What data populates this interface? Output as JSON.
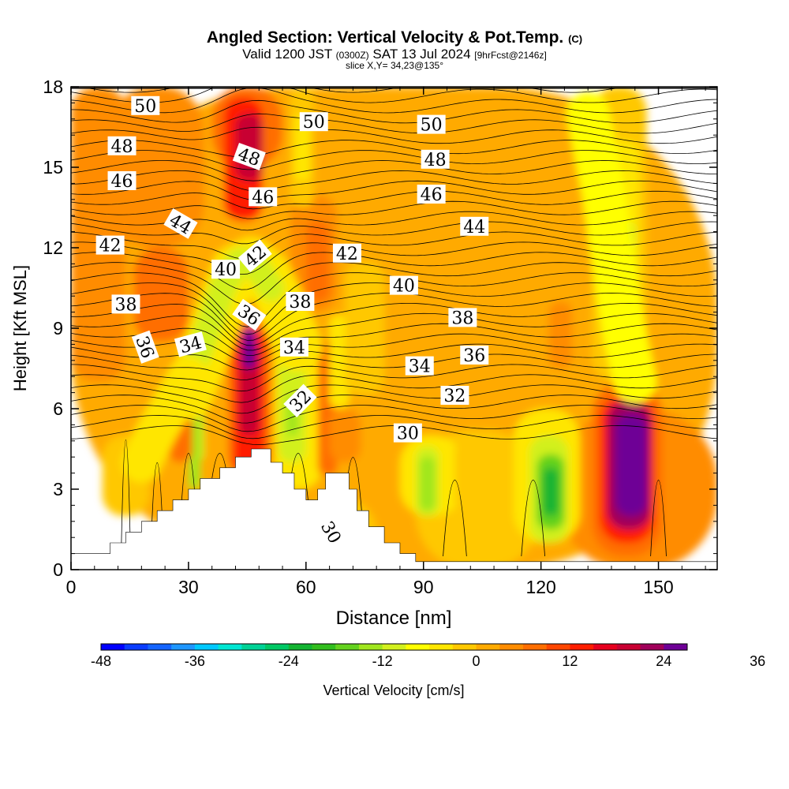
{
  "title": {
    "main": "Angled Section: Vertical Velocity & Pot.Temp.",
    "main_mark": "(C)",
    "valid_prefix": "Valid 1200 JST",
    "valid_utc": "(0300Z)",
    "valid_date": "SAT 13 Jul 2024",
    "forecast": "[9hrFcst@2146z]",
    "slice": "slice X,Y= 34,23@135°"
  },
  "chart_data": {
    "type": "heatmap",
    "xlabel": "Distance [nm]",
    "ylabel": "Height [Kft MSL]",
    "xlim": [
      0,
      165
    ],
    "ylim": [
      0,
      18
    ],
    "x_ticks": [
      "0",
      "30",
      "60",
      "90",
      "120",
      "150"
    ],
    "y_ticks": [
      "0",
      "3",
      "6",
      "9",
      "12",
      "15",
      "18"
    ],
    "colorbar": {
      "label": "Vertical Velocity [cm/s]",
      "tick_labels": [
        "-48",
        "-36",
        "-24",
        "-12",
        "0",
        "12",
        "24",
        "36"
      ],
      "levels_min": -48,
      "levels_step": 3,
      "colors": [
        "#0000ff",
        "#0a3cff",
        "#1464ff",
        "#1e96ff",
        "#00c8ff",
        "#00e6d2",
        "#00d296",
        "#00c864",
        "#14b432",
        "#32be1e",
        "#64d21e",
        "#a0e61e",
        "#d2f01e",
        "#ffff00",
        "#ffe600",
        "#ffc800",
        "#ffaa00",
        "#ff8c00",
        "#ff6e00",
        "#ff4600",
        "#ff1e00",
        "#e6001e",
        "#c80032",
        "#a0005a",
        "#6e0096"
      ]
    },
    "theta_contours_C": [
      30,
      32,
      34,
      36,
      38,
      40,
      42,
      44,
      46,
      48,
      50
    ],
    "contour_labels": [
      {
        "text": "50",
        "x": 19,
        "y": 17.3,
        "angle": 0
      },
      {
        "text": "50",
        "x": 62,
        "y": 16.7,
        "angle": 0
      },
      {
        "text": "50",
        "x": 92,
        "y": 16.6,
        "angle": 0
      },
      {
        "text": "48",
        "x": 13,
        "y": 15.8,
        "angle": 0
      },
      {
        "text": "48",
        "x": 45.5,
        "y": 15.4,
        "angle": 20
      },
      {
        "text": "48",
        "x": 93,
        "y": 15.3,
        "angle": 0
      },
      {
        "text": "46",
        "x": 13,
        "y": 14.5,
        "angle": 0
      },
      {
        "text": "46",
        "x": 49,
        "y": 13.9,
        "angle": 0
      },
      {
        "text": "46",
        "x": 92,
        "y": 14.0,
        "angle": 0
      },
      {
        "text": "44",
        "x": 28,
        "y": 12.9,
        "angle": 30
      },
      {
        "text": "44",
        "x": 103,
        "y": 12.8,
        "angle": 0
      },
      {
        "text": "42",
        "x": 10,
        "y": 12.1,
        "angle": 0
      },
      {
        "text": "42",
        "x": 47,
        "y": 11.7,
        "angle": -40
      },
      {
        "text": "42",
        "x": 70.5,
        "y": 11.8,
        "angle": 0
      },
      {
        "text": "40",
        "x": 39.5,
        "y": 11.2,
        "angle": 0
      },
      {
        "text": "40",
        "x": 85,
        "y": 10.6,
        "angle": 0
      },
      {
        "text": "38",
        "x": 14,
        "y": 9.9,
        "angle": 0
      },
      {
        "text": "38",
        "x": 58.5,
        "y": 10.0,
        "angle": 0
      },
      {
        "text": "38",
        "x": 100,
        "y": 9.4,
        "angle": 0
      },
      {
        "text": "36",
        "x": 45.5,
        "y": 9.5,
        "angle": 35
      },
      {
        "text": "36",
        "x": 19,
        "y": 8.3,
        "angle": 70
      },
      {
        "text": "36",
        "x": 103,
        "y": 8.0,
        "angle": 0
      },
      {
        "text": "34",
        "x": 30.5,
        "y": 8.4,
        "angle": -15
      },
      {
        "text": "34",
        "x": 57,
        "y": 8.3,
        "angle": 0
      },
      {
        "text": "34",
        "x": 89,
        "y": 7.6,
        "angle": 0
      },
      {
        "text": "32",
        "x": 58.5,
        "y": 6.3,
        "angle": -45
      },
      {
        "text": "32",
        "x": 98,
        "y": 6.5,
        "angle": 0
      },
      {
        "text": "30",
        "x": 86,
        "y": 5.1,
        "angle": 0
      },
      {
        "text": "30",
        "x": 66.5,
        "y": 1.4,
        "angle": 60
      }
    ],
    "velocity_cells": [
      {
        "x": 0,
        "y": 0,
        "w": 165,
        "h": 18,
        "value": 1.5
      },
      {
        "x": 0,
        "y": 7,
        "w": 14,
        "h": 11,
        "value": 4.5
      },
      {
        "x": 10,
        "y": 12,
        "w": 24,
        "h": 6,
        "value": 4.5
      },
      {
        "x": 124,
        "y": 0,
        "w": 41,
        "h": 6,
        "value": 4.5
      },
      {
        "x": 88,
        "y": 0,
        "w": 32,
        "h": 5.2,
        "value": -1.5
      },
      {
        "x": 58,
        "y": 0,
        "w": 20,
        "h": 2.6,
        "value": -1.5
      },
      {
        "x": 36,
        "y": 15,
        "w": 18,
        "h": 3,
        "value": 7.5
      },
      {
        "x": 39,
        "y": 13,
        "w": 10,
        "h": 4.6,
        "value": 13.5
      },
      {
        "x": 42,
        "y": 14.5,
        "w": 7,
        "h": 2.5,
        "value": 19.5
      },
      {
        "x": 56,
        "y": 9.6,
        "w": 12,
        "h": 4.4,
        "value": 4.5
      },
      {
        "x": 60,
        "y": 10,
        "w": 6,
        "h": 3,
        "value": 7.5
      },
      {
        "x": 16,
        "y": 8.5,
        "w": 14,
        "h": 3.5,
        "value": 7.5
      },
      {
        "x": 56,
        "y": 13.5,
        "w": 6,
        "h": 4.5,
        "value": -1.5
      },
      {
        "x": 57,
        "y": 14.5,
        "w": 4,
        "h": 2.5,
        "value": -4.5
      },
      {
        "x": 8,
        "y": 2,
        "w": 12,
        "h": 3,
        "value": -1.5
      },
      {
        "x": 40,
        "y": 3.5,
        "w": 11,
        "h": 6.5,
        "value": 7.5
      },
      {
        "x": 41.5,
        "y": 3.5,
        "w": 8,
        "h": 5.5,
        "value": 13.5
      },
      {
        "x": 43,
        "y": 5,
        "w": 5,
        "h": 3.5,
        "value": 19.5
      },
      {
        "x": 44,
        "y": 7.5,
        "w": 3,
        "h": 1.5,
        "value": 25.5
      },
      {
        "x": 52,
        "y": 3,
        "w": 12,
        "h": 6,
        "value": -4.5
      },
      {
        "x": 53,
        "y": 4,
        "w": 7,
        "h": 4,
        "value": -10.5
      },
      {
        "x": 55,
        "y": 5,
        "w": 3,
        "h": 1.5,
        "value": -13.5
      },
      {
        "x": 63,
        "y": 3.5,
        "w": 5,
        "h": 5,
        "value": 7.5
      },
      {
        "x": 66,
        "y": 6,
        "w": 5,
        "h": 3.5,
        "value": -4.5
      },
      {
        "x": 66,
        "y": 4,
        "w": 8,
        "h": 2,
        "value": 4.5
      },
      {
        "x": 29,
        "y": 4,
        "w": 5,
        "h": 3,
        "value": -10.5
      },
      {
        "x": 30,
        "y": 3,
        "w": 3,
        "h": 3,
        "value": -13.5
      },
      {
        "x": 25,
        "y": 4,
        "w": 6,
        "h": 2,
        "value": 7.5
      },
      {
        "x": 84,
        "y": 2,
        "w": 16,
        "h": 3,
        "value": -4.5
      },
      {
        "x": 88,
        "y": 2,
        "w": 6,
        "h": 2.6,
        "value": -10.5
      },
      {
        "x": 89,
        "y": 2.2,
        "w": 4,
        "h": 2,
        "value": -13.5
      },
      {
        "x": 98,
        "y": 2,
        "w": 10,
        "h": 3,
        "value": -1.5
      },
      {
        "x": 113,
        "y": 1,
        "w": 17,
        "h": 5,
        "value": -4.5
      },
      {
        "x": 117,
        "y": 1,
        "w": 10,
        "h": 4,
        "value": -10.5
      },
      {
        "x": 119,
        "y": 1.5,
        "w": 7,
        "h": 2.8,
        "value": -16.5
      },
      {
        "x": 120.5,
        "y": 2,
        "w": 4,
        "h": 1.8,
        "value": -22.5
      },
      {
        "x": 133,
        "y": 0.5,
        "w": 18,
        "h": 6.5,
        "value": 7.5
      },
      {
        "x": 135,
        "y": 1,
        "w": 14,
        "h": 5.5,
        "value": 13.5
      },
      {
        "x": 137,
        "y": 1.5,
        "w": 11,
        "h": 4.8,
        "value": 22.5
      },
      {
        "x": 139,
        "y": 2,
        "w": 8,
        "h": 3.8,
        "value": 28.5
      },
      {
        "x": 140.5,
        "y": 2.6,
        "w": 5,
        "h": 2.4,
        "value": 34.5
      },
      {
        "x": 142,
        "y": 3,
        "w": 2.4,
        "h": 1.2,
        "value": 40.5
      },
      {
        "x": 133,
        "y": 7,
        "w": 14,
        "h": 11,
        "value": -1.5
      },
      {
        "x": 137,
        "y": 8,
        "w": 8,
        "h": 8,
        "value": -4.5
      },
      {
        "x": 139,
        "y": 9,
        "w": 5,
        "h": 4,
        "value": -10.5
      },
      {
        "x": 122,
        "y": 7.5,
        "w": 6,
        "h": 2.5,
        "value": 4.5
      },
      {
        "x": 70,
        "y": 6.5,
        "w": 10,
        "h": 5,
        "value": -1.5
      }
    ],
    "velocity_bands": [
      {
        "center": [
          [
            30,
            6.5
          ],
          [
            34,
            8
          ],
          [
            38,
            9.6
          ],
          [
            42,
            11.2
          ],
          [
            46,
            11.5
          ],
          [
            50,
            11
          ],
          [
            54,
            9.8
          ],
          [
            58,
            8.3
          ]
        ],
        "width_ft": 1.8,
        "value": -4.5
      },
      {
        "center": [
          [
            31,
            7.5
          ],
          [
            35,
            9
          ],
          [
            39,
            10.6
          ],
          [
            43,
            11.5
          ],
          [
            47,
            11.4
          ],
          [
            51,
            10.5
          ]
        ],
        "width_ft": 1.0,
        "value": -10.5
      },
      {
        "center": [
          [
            18,
            4
          ],
          [
            22,
            5.2
          ],
          [
            26,
            6.2
          ],
          [
            30,
            7.2
          ]
        ],
        "width_ft": 1.5,
        "value": -4.5
      },
      {
        "center": [
          [
            132,
            17
          ],
          [
            136,
            14
          ],
          [
            139,
            11
          ],
          [
            141,
            9
          ],
          [
            144,
            7
          ]
        ],
        "width_ft": 1.6,
        "value": -7.5
      }
    ],
    "terrain_ft": [
      [
        0,
        0.6
      ],
      [
        10,
        0.6
      ],
      [
        10,
        1.0
      ],
      [
        14,
        1.0
      ],
      [
        14,
        1.4
      ],
      [
        18,
        1.4
      ],
      [
        18,
        1.8
      ],
      [
        22,
        1.8
      ],
      [
        22,
        2.2
      ],
      [
        26,
        2.2
      ],
      [
        26,
        2.6
      ],
      [
        30,
        2.6
      ],
      [
        30,
        3.0
      ],
      [
        33,
        3.0
      ],
      [
        33,
        3.4
      ],
      [
        38,
        3.4
      ],
      [
        38,
        3.8
      ],
      [
        42,
        3.8
      ],
      [
        42,
        4.2
      ],
      [
        46,
        4.2
      ],
      [
        46,
        4.5
      ],
      [
        51,
        4.5
      ],
      [
        51,
        4.0
      ],
      [
        54,
        4.0
      ],
      [
        54,
        3.6
      ],
      [
        57,
        3.6
      ],
      [
        57,
        3.0
      ],
      [
        60,
        3.0
      ],
      [
        60,
        2.6
      ],
      [
        63,
        2.6
      ],
      [
        63,
        3.0
      ],
      [
        65,
        3.0
      ],
      [
        65,
        3.6
      ],
      [
        71,
        3.6
      ],
      [
        71,
        3.0
      ],
      [
        73,
        3.0
      ],
      [
        73,
        2.2
      ],
      [
        76,
        2.2
      ],
      [
        76,
        1.6
      ],
      [
        80,
        1.6
      ],
      [
        80,
        1.0
      ],
      [
        84,
        1.0
      ],
      [
        84,
        0.6
      ],
      [
        88,
        0.6
      ],
      [
        88,
        0.3
      ],
      [
        165,
        0.3
      ]
    ]
  }
}
